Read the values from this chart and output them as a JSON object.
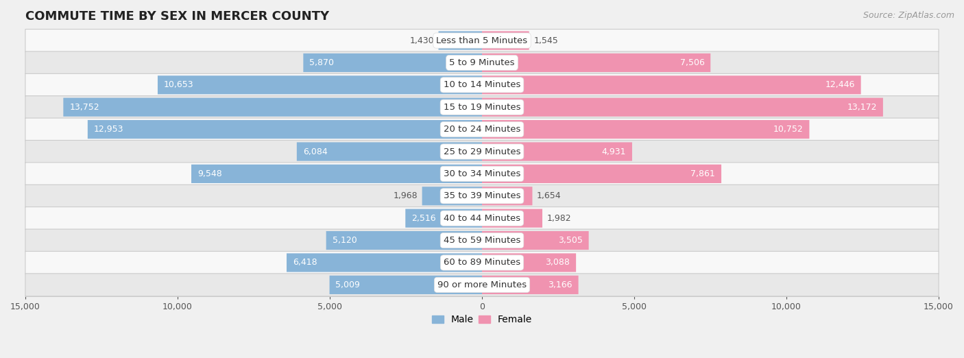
{
  "title": "COMMUTE TIME BY SEX IN MERCER COUNTY",
  "source": "Source: ZipAtlas.com",
  "categories": [
    "Less than 5 Minutes",
    "5 to 9 Minutes",
    "10 to 14 Minutes",
    "15 to 19 Minutes",
    "20 to 24 Minutes",
    "25 to 29 Minutes",
    "30 to 34 Minutes",
    "35 to 39 Minutes",
    "40 to 44 Minutes",
    "45 to 59 Minutes",
    "60 to 89 Minutes",
    "90 or more Minutes"
  ],
  "male_values": [
    1430,
    5870,
    10653,
    13752,
    12953,
    6084,
    9548,
    1968,
    2516,
    5120,
    6418,
    5009
  ],
  "female_values": [
    1545,
    7506,
    12446,
    13172,
    10752,
    4931,
    7861,
    1654,
    1982,
    3505,
    3088,
    3166
  ],
  "male_color": "#88b4d8",
  "female_color": "#f093b0",
  "label_color_inside": "#ffffff",
  "label_color_outside": "#555555",
  "xlim": 15000,
  "background_color": "#f0f0f0",
  "row_bg_light": "#f8f8f8",
  "row_bg_dark": "#e8e8e8",
  "row_border_color": "#cccccc",
  "bar_height": 0.82,
  "title_fontsize": 13,
  "label_fontsize": 9,
  "cat_fontsize": 9.5,
  "tick_fontsize": 9,
  "source_fontsize": 9,
  "inside_label_threshold": 2500
}
